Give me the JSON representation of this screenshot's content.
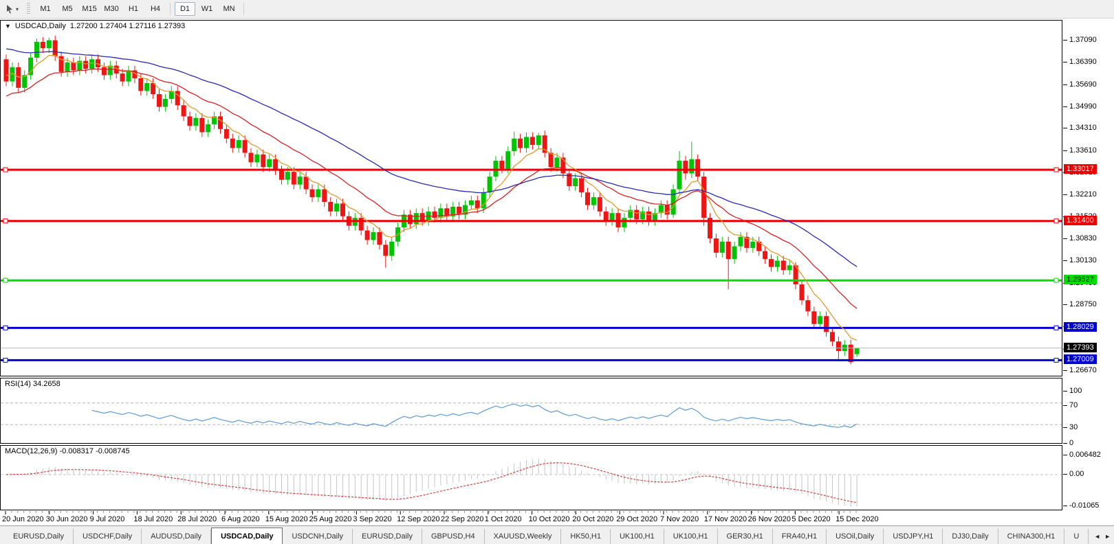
{
  "toolbar": {
    "tool_icon": "pointer-tool",
    "caret": "▾",
    "timeframes": [
      "M1",
      "M5",
      "M15",
      "M30",
      "H1",
      "H4",
      "D1",
      "W1",
      "MN"
    ],
    "active_timeframe": "D1"
  },
  "chart": {
    "collapse_arrow": "▼",
    "title_symbol": "USDCAD,Daily",
    "ohlc_text": "1.27200 1.27404 1.27116 1.27393"
  },
  "tabs": {
    "items": [
      {
        "label": "EURUSD,Daily"
      },
      {
        "label": "USDCHF,Daily"
      },
      {
        "label": "AUDUSD,Daily"
      },
      {
        "label": "USDCAD,Daily"
      },
      {
        "label": "USDCNH,Daily"
      },
      {
        "label": "EURUSD,Daily"
      },
      {
        "label": "GBPUSD,H4"
      },
      {
        "label": "XAUUSD,Weekly"
      },
      {
        "label": "HK50,H1"
      },
      {
        "label": "UK100,H1"
      },
      {
        "label": "UK100,H1"
      },
      {
        "label": "GER30,H1"
      },
      {
        "label": "FRA40,H1"
      },
      {
        "label": "USOil,Daily"
      },
      {
        "label": "USDJPY,H1"
      },
      {
        "label": "DJ30,Daily"
      },
      {
        "label": "CHINA300,H1"
      },
      {
        "label": "U"
      }
    ],
    "active_index": 3,
    "scroll_left_icon": "◄",
    "scroll_right_icon": "►"
  },
  "chart_data": {
    "type": "candlestick",
    "symbol": "USDCAD",
    "timeframe": "Daily",
    "ylim": [
      1.2652,
      1.3772
    ],
    "up_color": "#00c400",
    "down_color": "#ef1515",
    "y_ticks": [
      "1.37090",
      "1.36390",
      "1.35690",
      "1.34990",
      "1.34310",
      "1.33610",
      "1.32910",
      "1.32210",
      "1.31520",
      "1.30830",
      "1.30130",
      "1.29430",
      "1.28750",
      "1.28050",
      "1.27350",
      "1.26670"
    ],
    "x_labels": [
      "20 Jun 2020",
      "30 Jun 2020",
      "9 Jul 2020",
      "18 Jul 2020",
      "28 Jul 2020",
      "6 Aug 2020",
      "15 Aug 2020",
      "25 Aug 2020",
      "3 Sep 2020",
      "12 Sep 2020",
      "22 Sep 2020",
      "1 Oct 2020",
      "10 Oct 2020",
      "20 Oct 2020",
      "29 Oct 2020",
      "7 Nov 2020",
      "17 Nov 2020",
      "26 Nov 2020",
      "5 Dec 2020",
      "15 Dec 2020"
    ],
    "hlines": [
      {
        "price": 1.33017,
        "label": "1.33017",
        "color": "#ee0000",
        "text_color": "#ffffff"
      },
      {
        "price": 1.314,
        "label": "1.31400",
        "color": "#ee0000",
        "text_color": "#ffffff"
      },
      {
        "price": 1.29527,
        "label": "1.29527",
        "color": "#00dd00",
        "text_color": "#000000"
      },
      {
        "price": 1.28029,
        "label": "1.28029",
        "color": "#0000cc",
        "text_color": "#ffffff"
      },
      {
        "price": 1.27009,
        "label": "1.27009",
        "color": "#0000cc",
        "text_color": "#ffffff"
      }
    ],
    "current_price": {
      "price": 1.27393,
      "label": "1.27393",
      "line_color": "#b8b8b8",
      "box_color": "#000000",
      "text_color": "#ffffff"
    },
    "moving_averages": [
      {
        "name": "fast-ma",
        "period": 7,
        "color": "#e09a2e",
        "seed": 1.3605
      },
      {
        "name": "medium-ma",
        "period": 18,
        "color": "#d42222",
        "seed": 1.3528
      },
      {
        "name": "slow-ma",
        "period": 42,
        "color": "#2929b4",
        "seed": 1.3688
      }
    ],
    "rsi": {
      "label": "RSI(14) 34.2658",
      "period": 14,
      "value": 34.2658,
      "scale": [
        "100",
        "70",
        "30",
        "0"
      ],
      "levels": [
        70,
        30
      ],
      "line_color": "#5b9bd5"
    },
    "macd": {
      "label": "MACD(12,26,9) -0.008317 -0.008745",
      "fast": 12,
      "slow": 26,
      "signal_period": 9,
      "value": -0.008317,
      "signal_value": -0.008745,
      "scale": [
        "0.006482",
        "0.00",
        "-0.01065"
      ],
      "bar_color": "#c4c4c4",
      "signal_color": "#d83a3a"
    },
    "candles": [
      [
        1.365,
        1.3665,
        1.3565,
        1.358
      ],
      [
        1.358,
        1.364,
        1.3565,
        1.3625
      ],
      [
        1.3625,
        1.364,
        1.3545,
        1.356
      ],
      [
        1.356,
        1.3615,
        1.3545,
        1.36
      ],
      [
        1.36,
        1.367,
        1.3585,
        1.3655
      ],
      [
        1.3655,
        1.3715,
        1.364,
        1.3705
      ],
      [
        1.3705,
        1.372,
        1.367,
        1.3685
      ],
      [
        1.3685,
        1.3718,
        1.367,
        1.371
      ],
      [
        1.371,
        1.3725,
        1.3645,
        1.366
      ],
      [
        1.366,
        1.3675,
        1.3595,
        1.361
      ],
      [
        1.361,
        1.3655,
        1.3595,
        1.364
      ],
      [
        1.364,
        1.3655,
        1.36,
        1.3615
      ],
      [
        1.3615,
        1.366,
        1.36,
        1.3645
      ],
      [
        1.3645,
        1.366,
        1.3605,
        1.362
      ],
      [
        1.362,
        1.3665,
        1.3605,
        1.365
      ],
      [
        1.365,
        1.3665,
        1.361,
        1.3625
      ],
      [
        1.3625,
        1.364,
        1.3585,
        1.36
      ],
      [
        1.36,
        1.3645,
        1.3585,
        1.363
      ],
      [
        1.363,
        1.3645,
        1.359,
        1.3605
      ],
      [
        1.3605,
        1.362,
        1.3565,
        1.358
      ],
      [
        1.358,
        1.363,
        1.3565,
        1.3615
      ],
      [
        1.3615,
        1.363,
        1.3575,
        1.359
      ],
      [
        1.359,
        1.3605,
        1.3535,
        1.355
      ],
      [
        1.355,
        1.359,
        1.3535,
        1.3575
      ],
      [
        1.3575,
        1.359,
        1.3525,
        1.354
      ],
      [
        1.354,
        1.3555,
        1.3485,
        1.35
      ],
      [
        1.35,
        1.354,
        1.3485,
        1.3525
      ],
      [
        1.3525,
        1.3565,
        1.351,
        1.355
      ],
      [
        1.355,
        1.3565,
        1.349,
        1.3505
      ],
      [
        1.3505,
        1.352,
        1.3455,
        1.347
      ],
      [
        1.347,
        1.3485,
        1.3425,
        1.344
      ],
      [
        1.344,
        1.348,
        1.3425,
        1.3465
      ],
      [
        1.3465,
        1.348,
        1.3405,
        1.342
      ],
      [
        1.342,
        1.346,
        1.3405,
        1.3445
      ],
      [
        1.3445,
        1.3485,
        1.343,
        1.347
      ],
      [
        1.347,
        1.3485,
        1.3415,
        1.343
      ],
      [
        1.343,
        1.3445,
        1.3385,
        1.34
      ],
      [
        1.34,
        1.3415,
        1.3355,
        1.337
      ],
      [
        1.337,
        1.341,
        1.3355,
        1.3395
      ],
      [
        1.3395,
        1.341,
        1.334,
        1.3355
      ],
      [
        1.3355,
        1.337,
        1.331,
        1.3325
      ],
      [
        1.3325,
        1.3365,
        1.331,
        1.335
      ],
      [
        1.335,
        1.3365,
        1.3295,
        1.331
      ],
      [
        1.331,
        1.335,
        1.3295,
        1.3335
      ],
      [
        1.3335,
        1.335,
        1.3285,
        1.33
      ],
      [
        1.33,
        1.3315,
        1.3255,
        1.327
      ],
      [
        1.327,
        1.331,
        1.3255,
        1.3295
      ],
      [
        1.3295,
        1.331,
        1.324,
        1.3255
      ],
      [
        1.3255,
        1.3295,
        1.324,
        1.328
      ],
      [
        1.328,
        1.3295,
        1.3225,
        1.324
      ],
      [
        1.324,
        1.3255,
        1.32,
        1.3215
      ],
      [
        1.3215,
        1.3255,
        1.32,
        1.324
      ],
      [
        1.324,
        1.3255,
        1.3185,
        1.32
      ],
      [
        1.32,
        1.3215,
        1.3155,
        1.317
      ],
      [
        1.317,
        1.321,
        1.3155,
        1.3195
      ],
      [
        1.3195,
        1.321,
        1.314,
        1.3155
      ],
      [
        1.3155,
        1.317,
        1.311,
        1.3125
      ],
      [
        1.3125,
        1.3165,
        1.311,
        1.315
      ],
      [
        1.315,
        1.3165,
        1.3095,
        1.311
      ],
      [
        1.311,
        1.3125,
        1.3065,
        1.308
      ],
      [
        1.308,
        1.312,
        1.3065,
        1.3105
      ],
      [
        1.3105,
        1.312,
        1.305,
        1.3065
      ],
      [
        1.3065,
        1.308,
        1.2993,
        1.303
      ],
      [
        1.303,
        1.309,
        1.3015,
        1.3075
      ],
      [
        1.3075,
        1.3135,
        1.306,
        1.312
      ],
      [
        1.312,
        1.3175,
        1.3105,
        1.316
      ],
      [
        1.316,
        1.3175,
        1.3115,
        1.313
      ],
      [
        1.313,
        1.318,
        1.3115,
        1.3165
      ],
      [
        1.3165,
        1.318,
        1.3125,
        1.314
      ],
      [
        1.314,
        1.3185,
        1.3125,
        1.317
      ],
      [
        1.317,
        1.3185,
        1.3135,
        1.315
      ],
      [
        1.315,
        1.3195,
        1.3135,
        1.318
      ],
      [
        1.318,
        1.3195,
        1.314,
        1.3155
      ],
      [
        1.3155,
        1.32,
        1.314,
        1.3185
      ],
      [
        1.3185,
        1.32,
        1.3145,
        1.316
      ],
      [
        1.316,
        1.3205,
        1.3145,
        1.319
      ],
      [
        1.319,
        1.322,
        1.3175,
        1.3205
      ],
      [
        1.3205,
        1.322,
        1.3165,
        1.318
      ],
      [
        1.318,
        1.3245,
        1.3165,
        1.323
      ],
      [
        1.323,
        1.3295,
        1.3215,
        1.328
      ],
      [
        1.328,
        1.3345,
        1.3265,
        1.333
      ],
      [
        1.333,
        1.3345,
        1.329,
        1.3305
      ],
      [
        1.3305,
        1.3375,
        1.329,
        1.336
      ],
      [
        1.336,
        1.3422,
        1.3345,
        1.34
      ],
      [
        1.34,
        1.3415,
        1.3355,
        1.337
      ],
      [
        1.337,
        1.342,
        1.3355,
        1.3405
      ],
      [
        1.3405,
        1.342,
        1.3365,
        1.338
      ],
      [
        1.338,
        1.3418,
        1.3365,
        1.341
      ],
      [
        1.341,
        1.3425,
        1.334,
        1.3355
      ],
      [
        1.3355,
        1.337,
        1.3295,
        1.331
      ],
      [
        1.331,
        1.3355,
        1.3295,
        1.334
      ],
      [
        1.334,
        1.3355,
        1.3275,
        1.329
      ],
      [
        1.329,
        1.3305,
        1.3235,
        1.325
      ],
      [
        1.325,
        1.329,
        1.3235,
        1.3275
      ],
      [
        1.3275,
        1.329,
        1.3215,
        1.323
      ],
      [
        1.323,
        1.3245,
        1.3175,
        1.319
      ],
      [
        1.319,
        1.323,
        1.3175,
        1.3215
      ],
      [
        1.3215,
        1.323,
        1.3155,
        1.317
      ],
      [
        1.317,
        1.3185,
        1.3125,
        1.314
      ],
      [
        1.314,
        1.318,
        1.3125,
        1.3165
      ],
      [
        1.3165,
        1.318,
        1.3105,
        1.312
      ],
      [
        1.312,
        1.3165,
        1.3105,
        1.315
      ],
      [
        1.315,
        1.319,
        1.3135,
        1.3175
      ],
      [
        1.3175,
        1.319,
        1.313,
        1.3145
      ],
      [
        1.3145,
        1.3185,
        1.313,
        1.317
      ],
      [
        1.317,
        1.3185,
        1.3125,
        1.314
      ],
      [
        1.314,
        1.318,
        1.3125,
        1.3165
      ],
      [
        1.3165,
        1.3205,
        1.315,
        1.319
      ],
      [
        1.319,
        1.3205,
        1.3145,
        1.316
      ],
      [
        1.316,
        1.3255,
        1.315,
        1.324
      ],
      [
        1.324,
        1.336,
        1.3225,
        1.333
      ],
      [
        1.333,
        1.3345,
        1.327,
        1.329
      ],
      [
        1.329,
        1.339,
        1.3275,
        1.3335
      ],
      [
        1.3335,
        1.335,
        1.3265,
        1.328
      ],
      [
        1.328,
        1.3295,
        1.3125,
        1.315
      ],
      [
        1.315,
        1.3165,
        1.307,
        1.3085
      ],
      [
        1.3085,
        1.31,
        1.3025,
        1.304
      ],
      [
        1.304,
        1.309,
        1.3025,
        1.3075
      ],
      [
        1.3075,
        1.309,
        1.2925,
        1.302
      ],
      [
        1.302,
        1.3075,
        1.3005,
        1.306
      ],
      [
        1.306,
        1.3105,
        1.3045,
        1.309
      ],
      [
        1.309,
        1.3105,
        1.304,
        1.3055
      ],
      [
        1.3055,
        1.309,
        1.304,
        1.3075
      ],
      [
        1.3075,
        1.309,
        1.303,
        1.3045
      ],
      [
        1.3045,
        1.306,
        1.3005,
        1.302
      ],
      [
        1.302,
        1.3035,
        1.298,
        1.2995
      ],
      [
        1.2995,
        1.303,
        1.298,
        1.3015
      ],
      [
        1.3015,
        1.303,
        1.297,
        1.2985
      ],
      [
        1.2985,
        1.3015,
        1.297,
        1.3
      ],
      [
        1.3,
        1.301,
        1.2925,
        1.294
      ],
      [
        1.294,
        1.2955,
        1.2875,
        1.289
      ],
      [
        1.289,
        1.2905,
        1.284,
        1.2855
      ],
      [
        1.2855,
        1.287,
        1.28,
        1.2815
      ],
      [
        1.2815,
        1.2855,
        1.28,
        1.284
      ],
      [
        1.284,
        1.2855,
        1.2775,
        1.279
      ],
      [
        1.279,
        1.2805,
        1.2745,
        1.276
      ],
      [
        1.276,
        1.2775,
        1.27,
        1.273
      ],
      [
        1.273,
        1.2765,
        1.2715,
        1.275
      ],
      [
        1.275,
        1.2765,
        1.2688,
        1.2695
      ],
      [
        1.272,
        1.27404,
        1.27116,
        1.27393
      ]
    ]
  }
}
